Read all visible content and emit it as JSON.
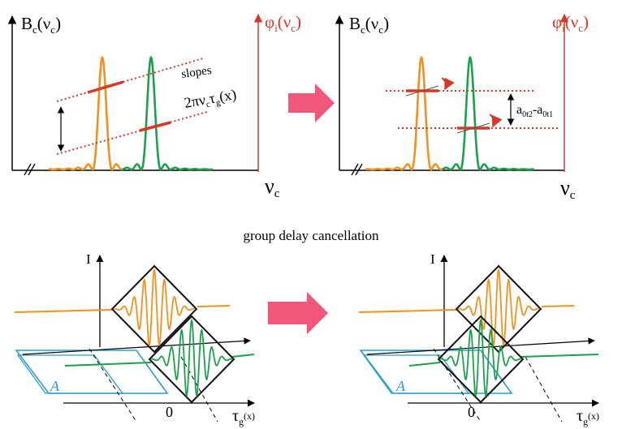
{
  "top_left": {
    "y_axis_label": "B",
    "y_axis_sub": "c",
    "y_axis_arg": "(ν",
    "y_axis_arg_sub": "c",
    "y_axis_close": ")",
    "phase_axis_label": "φ",
    "phase_axis_sub": "i",
    "phase_axis_arg": "(ν",
    "phase_axis_arg_sub": "c",
    "phase_axis_close": ")",
    "x_axis_label": "ν",
    "x_axis_sub": "c",
    "slopes_label": "slopes",
    "slope_formula_a": "2πν",
    "slope_formula_sub1": "c",
    "slope_formula_b": "τ",
    "slope_formula_sub2": "g",
    "slope_formula_c": "(x)"
  },
  "top_right": {
    "y_axis_label": "B",
    "y_axis_sub": "c",
    "y_axis_arg": "(ν",
    "y_axis_arg_sub": "c",
    "y_axis_close": ")",
    "phase_axis_label": "φ",
    "phase_axis_sub": "i",
    "phase_axis_arg": "(ν",
    "phase_axis_arg_sub": "c",
    "phase_axis_close": ")",
    "x_axis_label": "ν",
    "x_axis_sub": "c",
    "offset_a": "a",
    "offset_sub1": "0t2",
    "offset_minus": "-a",
    "offset_sub2": "0t1"
  },
  "caption": "group delay cancellation",
  "bottom_left": {
    "intensity_label": "I",
    "zero_label": "0",
    "tau_label": "τ",
    "tau_sub": "g",
    "tau_arg": "(x)",
    "region_label": "A"
  },
  "bottom_right": {
    "intensity_label": "I",
    "zero_label": "0",
    "tau_label": "τ",
    "tau_sub": "g",
    "tau_arg": "(x)",
    "region_label": "A"
  },
  "colors": {
    "orange": "#f0931e",
    "green": "#1aa24a",
    "red": "#d43a2a",
    "pink_arrow": "#f2577a",
    "cyan": "#2a9fc8",
    "black": "#000000"
  }
}
